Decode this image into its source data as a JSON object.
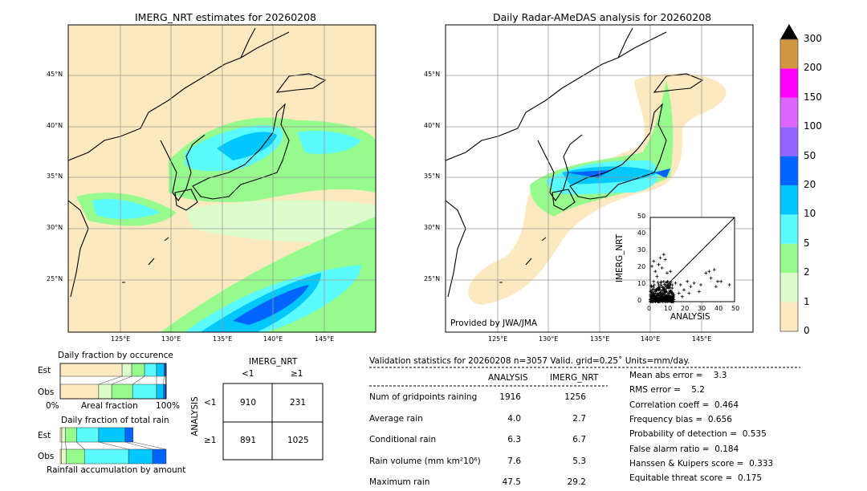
{
  "left_map": {
    "title": "IMERG_NRT estimates for 20260208"
  },
  "right_map": {
    "title": "Daily Radar-AMeDAS analysis for 20260208",
    "credit": "Provided by JWA/JMA"
  },
  "lon_ticks": [
    "125°E",
    "130°E",
    "135°E",
    "140°E",
    "145°E"
  ],
  "lat_ticks": [
    "45°N",
    "40°N",
    "35°N",
    "30°N",
    "25°N"
  ],
  "colorbar": {
    "ticks": [
      "0",
      "1",
      "2",
      "5",
      "10",
      "20",
      "50",
      "100",
      "150",
      "200",
      "300"
    ],
    "colors": [
      "#fde9c0",
      "#dcfccc",
      "#96fa8c",
      "#5afaff",
      "#00c8ff",
      "#0064ff",
      "#9664ff",
      "#dc64ff",
      "#ff00ff",
      "#d09640"
    ],
    "extend_color": "#000000"
  },
  "chart_data": [
    {
      "type": "scatter",
      "xlabel": "ANALYSIS",
      "ylabel": "IMERG_NRT",
      "xlim": [
        0,
        50
      ],
      "ylim": [
        0,
        50
      ],
      "xticks": [
        "0",
        "10",
        "20",
        "30",
        "40",
        "50"
      ],
      "yticks": [
        "0",
        "10",
        "20",
        "30",
        "40",
        "50"
      ],
      "points": [
        [
          1,
          21
        ],
        [
          2,
          24
        ],
        [
          3,
          18
        ],
        [
          5,
          22
        ],
        [
          6,
          26
        ],
        [
          8,
          28
        ],
        [
          9,
          25
        ],
        [
          7,
          20
        ],
        [
          4,
          15
        ],
        [
          10,
          17
        ],
        [
          12,
          18
        ],
        [
          2,
          12
        ],
        [
          5,
          10
        ],
        [
          8,
          12
        ],
        [
          11,
          9
        ],
        [
          13,
          8
        ],
        [
          15,
          11
        ],
        [
          18,
          10
        ],
        [
          20,
          7
        ],
        [
          22,
          12
        ],
        [
          24,
          9
        ],
        [
          26,
          11
        ],
        [
          29,
          6
        ],
        [
          30,
          10
        ],
        [
          33,
          17
        ],
        [
          35,
          18
        ],
        [
          36,
          14
        ],
        [
          38,
          19
        ],
        [
          40,
          12
        ],
        [
          42,
          12
        ],
        [
          47,
          10
        ],
        [
          39,
          9
        ],
        [
          3,
          5
        ],
        [
          6,
          4
        ],
        [
          9,
          6
        ],
        [
          14,
          4
        ],
        [
          17,
          5
        ],
        [
          2,
          2
        ],
        [
          5,
          1
        ],
        [
          10,
          2
        ],
        [
          19,
          3
        ],
        [
          23,
          5
        ]
      ]
    },
    {
      "type": "bar",
      "title": "Daily fraction by occurence",
      "xlabel": "Areal fraction",
      "xticks": [
        "0%",
        "100%"
      ],
      "categories": [
        "Est",
        "Obs"
      ],
      "series": [
        {
          "name": "Est",
          "cumulative": [
            0.584,
            0.675,
            0.796,
            0.909,
            0.98,
            0.995,
            1.0
          ]
        },
        {
          "name": "Obs",
          "cumulative": [
            0.363,
            0.486,
            0.683,
            0.909,
            0.975,
            0.995,
            1.0
          ]
        }
      ]
    },
    {
      "type": "bar",
      "title": "Daily fraction of total rain",
      "xlabel": "Rainfall accumulation by amount",
      "categories": [
        "Est",
        "Obs"
      ],
      "series": [
        {
          "name": "Est",
          "cumulative": [
            0.015,
            0.048,
            0.154,
            0.363,
            0.612,
            0.688
          ]
        },
        {
          "name": "Obs",
          "cumulative": [
            0.013,
            0.058,
            0.229,
            0.645,
            0.872,
            1.0
          ]
        }
      ]
    },
    {
      "type": "table",
      "title": "IMERG_NRT",
      "row_label": "ANALYSIS",
      "col_headers": [
        "<1",
        "≥1"
      ],
      "row_headers": [
        "<1",
        "≥1"
      ],
      "cells": [
        [
          "910",
          "231"
        ],
        [
          "891",
          "1025"
        ]
      ]
    }
  ],
  "stats": {
    "header": "Validation statistics for 20260208  n=3057 Valid. grid=0.25˚ Units=mm/day.",
    "col1": "ANALYSIS",
    "col2": "IMERG_NRT",
    "rows": [
      {
        "label": "Num of gridpoints raining",
        "a": "1916",
        "b": "1256"
      },
      {
        "label": "Average rain",
        "a": "4.0",
        "b": "2.7"
      },
      {
        "label": "Conditional rain",
        "a": "6.3",
        "b": "6.7"
      },
      {
        "label": "Rain volume (mm km²10⁶)",
        "a": "7.6",
        "b": "5.3"
      },
      {
        "label": "Maximum rain",
        "a": "47.5",
        "b": "29.2"
      }
    ],
    "scores": [
      "Mean abs error =    3.3",
      "RMS error =    5.2",
      "Correlation coeff =  0.464",
      "Frequency bias =  0.656",
      "Probability of detection =  0.535",
      "False alarm ratio =  0.184",
      "Hanssen & Kuipers score =  0.333",
      "Equitable threat score =  0.175"
    ]
  }
}
